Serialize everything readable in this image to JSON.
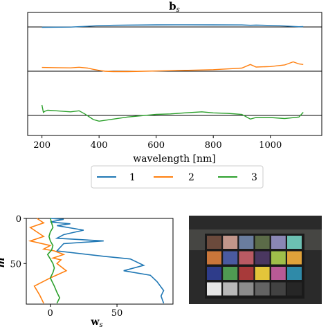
{
  "colors": {
    "s1": "#1f77b4",
    "s2": "#ff7f0e",
    "s3": "#2ca02c",
    "axis": "#000000",
    "photo_bg": "#2a2a2a"
  },
  "chart_data": [
    {
      "type": "line",
      "title": "b",
      "title_sub": "s",
      "xlabel": "wavelength [nm]",
      "xlim": [
        150,
        1180
      ],
      "xticks": [
        200,
        400,
        600,
        800,
        1000
      ],
      "grid": false,
      "legend": {
        "placement": "bottom-center",
        "entries": [
          "1",
          "2",
          "3"
        ]
      },
      "series": [
        {
          "name": "1",
          "color": "#1f77b4",
          "baseline": 0,
          "x": [
            200,
            300,
            350,
            400,
            450,
            500,
            600,
            700,
            800,
            900,
            930,
            950,
            1000,
            1050,
            1100,
            1115
          ],
          "y": [
            -0.3,
            -0.1,
            0.5,
            1.2,
            1.5,
            1.7,
            1.9,
            1.95,
            1.9,
            1.8,
            1.5,
            1.7,
            1.4,
            0.9,
            0.2,
            0.3
          ]
        },
        {
          "name": "2",
          "color": "#ff7f0e",
          "baseline": 0,
          "x": [
            200,
            250,
            300,
            330,
            360,
            380,
            400,
            420,
            450,
            500,
            600,
            700,
            800,
            850,
            900,
            930,
            950,
            1000,
            1050,
            1080,
            1100,
            1115
          ],
          "y": [
            3.6,
            3.4,
            3.2,
            3.8,
            3.0,
            1.8,
            0.8,
            0.0,
            -0.4,
            -0.3,
            0.2,
            0.8,
            1.5,
            2.2,
            3.0,
            6.5,
            4.0,
            4.5,
            6.0,
            9.0,
            7.0,
            6.5
          ]
        },
        {
          "name": "3",
          "color": "#2ca02c",
          "baseline": 0,
          "x": [
            200,
            205,
            210,
            220,
            250,
            300,
            330,
            350,
            380,
            400,
            450,
            500,
            600,
            650,
            700,
            760,
            800,
            850,
            900,
            930,
            950,
            1000,
            1050,
            1100,
            1115
          ],
          "y": [
            10,
            3,
            4,
            5,
            4.5,
            3.5,
            4.5,
            1.5,
            -4,
            -5.5,
            -3.5,
            -1.5,
            1.0,
            1.5,
            2.5,
            3.5,
            2.5,
            2.0,
            1.0,
            -3.5,
            -2.0,
            -2.0,
            -3.0,
            -1.5,
            3.0
          ]
        }
      ]
    },
    {
      "type": "line",
      "xlabel": "w",
      "xlabel_sub": "s",
      "ylabel": "m",
      "xlim": [
        -18,
        92
      ],
      "ylim": [
        95,
        0
      ],
      "xticks": [
        0,
        50
      ],
      "yticks": [
        0,
        50
      ],
      "series": [
        {
          "name": "1",
          "color": "#1f77b4",
          "x": [
            0,
            10,
            0,
            15,
            5,
            25,
            10,
            5,
            40,
            10,
            5,
            40,
            60,
            70,
            55,
            75,
            80,
            85,
            83,
            85
          ],
          "y": [
            0,
            1,
            4,
            6,
            8,
            13,
            18,
            22,
            25,
            28,
            36,
            42,
            45,
            52,
            58,
            63,
            70,
            80,
            86,
            94
          ]
        },
        {
          "name": "2",
          "color": "#ff7f0e",
          "x": [
            -10,
            -5,
            -15,
            -10,
            -5,
            -15,
            0,
            -5,
            3,
            10,
            2,
            8,
            5,
            12,
            0,
            -12,
            -8,
            -5
          ],
          "y": [
            0,
            5,
            10,
            15,
            20,
            25,
            30,
            34,
            36,
            40,
            44,
            46,
            50,
            58,
            66,
            75,
            85,
            94
          ]
        },
        {
          "name": "3",
          "color": "#2ca02c",
          "x": [
            0,
            1,
            2,
            0,
            -1,
            0,
            2,
            1,
            -2,
            0,
            2,
            3,
            2,
            0,
            3,
            5,
            7,
            5
          ],
          "y": [
            0,
            5,
            10,
            15,
            20,
            25,
            30,
            35,
            40,
            45,
            50,
            55,
            60,
            66,
            75,
            82,
            88,
            94
          ]
        }
      ]
    }
  ],
  "photo": {
    "description": "color checker chart",
    "patches": [
      [
        "#6b4a3c",
        "#c2968a",
        "#6a7d9e",
        "#5b6b48",
        "#8a87b5",
        "#6cc0b2"
      ],
      [
        "#c9763a",
        "#4a5aa0",
        "#b95a63",
        "#4a3760",
        "#9fbe4a",
        "#e0a23a"
      ],
      [
        "#2e3c8a",
        "#4f9a52",
        "#a83a3a",
        "#e3c53a",
        "#b85a96",
        "#2f8aa8"
      ],
      [
        "#e6e6e6",
        "#b8b8b8",
        "#8c8c8c",
        "#636363",
        "#424242",
        "#262626"
      ]
    ]
  }
}
